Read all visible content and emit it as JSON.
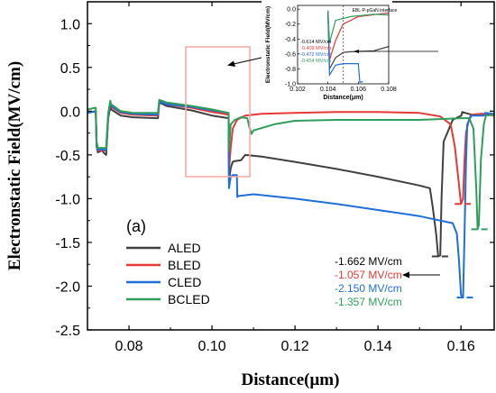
{
  "chart_data": {
    "type": "line",
    "xlabel": "Distance(μm)",
    "ylabel": "Electronstatic Field(MV/cm)",
    "xlim": [
      0.07,
      0.168
    ],
    "ylim": [
      -2.5,
      1.25
    ],
    "xticks": [
      0.08,
      0.1,
      0.12,
      0.14,
      0.16
    ],
    "xtick_labels": [
      "0.08",
      "0.10",
      "0.12",
      "0.14",
      "0.16"
    ],
    "yticks": [
      1.0,
      0.5,
      0.0,
      -0.5,
      -1.0,
      -1.5,
      -2.0,
      -2.5
    ],
    "ytick_labels": [
      "1.0",
      "0.5",
      "0.0",
      "-0.5",
      "-1.0",
      "-1.5",
      "-2.0",
      "-2.5"
    ],
    "panel_label": "(a)",
    "legend_position": "bottom-left",
    "series": [
      {
        "name": "ALED",
        "color": "#404040",
        "points": [
          [
            0.07,
            -0.02
          ],
          [
            0.072,
            0.0
          ],
          [
            0.0722,
            -0.4
          ],
          [
            0.0725,
            -0.47
          ],
          [
            0.0735,
            -0.45
          ],
          [
            0.074,
            -0.48
          ],
          [
            0.0745,
            -0.5
          ],
          [
            0.075,
            -0.08
          ],
          [
            0.0755,
            0.05
          ],
          [
            0.0757,
            0.02
          ],
          [
            0.078,
            -0.05
          ],
          [
            0.081,
            -0.07
          ],
          [
            0.0865,
            -0.08
          ],
          [
            0.087,
            -0.08
          ],
          [
            0.0873,
            0.1
          ],
          [
            0.089,
            0.06
          ],
          [
            0.095,
            0.01
          ],
          [
            0.1,
            -0.05
          ],
          [
            0.104,
            -0.08
          ],
          [
            0.1041,
            -0.8
          ],
          [
            0.1045,
            -0.65
          ],
          [
            0.105,
            -0.58
          ],
          [
            0.1055,
            -0.57
          ],
          [
            0.107,
            -0.56
          ],
          [
            0.108,
            -0.5
          ],
          [
            0.112,
            -0.52
          ],
          [
            0.12,
            -0.58
          ],
          [
            0.13,
            -0.66
          ],
          [
            0.14,
            -0.75
          ],
          [
            0.15,
            -0.85
          ],
          [
            0.1525,
            -0.88
          ],
          [
            0.1532,
            -1.1
          ],
          [
            0.154,
            -1.4
          ],
          [
            0.1545,
            -1.66
          ],
          [
            0.155,
            -1.65
          ],
          [
            0.1553,
            -1.0
          ],
          [
            0.1558,
            -0.35
          ],
          [
            0.158,
            -0.1
          ],
          [
            0.1601,
            -0.05
          ],
          [
            0.1603,
            -0.01
          ],
          [
            0.1625,
            -0.04
          ],
          [
            0.165,
            -0.03
          ],
          [
            0.168,
            -0.04
          ]
        ]
      },
      {
        "name": "BLED",
        "color": "#e53935",
        "points": [
          [
            0.07,
            -0.02
          ],
          [
            0.072,
            0.0
          ],
          [
            0.0722,
            -0.38
          ],
          [
            0.0725,
            -0.45
          ],
          [
            0.074,
            -0.45
          ],
          [
            0.0745,
            -0.45
          ],
          [
            0.075,
            -0.05
          ],
          [
            0.0755,
            0.08
          ],
          [
            0.0757,
            0.05
          ],
          [
            0.078,
            -0.02
          ],
          [
            0.081,
            -0.04
          ],
          [
            0.0865,
            -0.05
          ],
          [
            0.087,
            -0.05
          ],
          [
            0.0873,
            0.11
          ],
          [
            0.089,
            0.08
          ],
          [
            0.095,
            0.04
          ],
          [
            0.1,
            -0.01
          ],
          [
            0.104,
            -0.04
          ],
          [
            0.1041,
            -0.68
          ],
          [
            0.1045,
            -0.42
          ],
          [
            0.105,
            -0.2
          ],
          [
            0.106,
            -0.1
          ],
          [
            0.108,
            -0.05
          ],
          [
            0.112,
            -0.03
          ],
          [
            0.12,
            -0.02
          ],
          [
            0.13,
            -0.01
          ],
          [
            0.14,
            -0.01
          ],
          [
            0.15,
            -0.02
          ],
          [
            0.155,
            -0.06
          ],
          [
            0.1575,
            -0.15
          ],
          [
            0.1585,
            -0.4
          ],
          [
            0.1592,
            -0.7
          ],
          [
            0.16,
            -1.06
          ],
          [
            0.1605,
            -1.0
          ],
          [
            0.1608,
            -0.6
          ],
          [
            0.1612,
            -0.25
          ],
          [
            0.162,
            -0.08
          ],
          [
            0.1625,
            -0.04
          ],
          [
            0.165,
            -0.03
          ],
          [
            0.168,
            -0.05
          ]
        ]
      },
      {
        "name": "CLED",
        "color": "#1e6fd9",
        "points": [
          [
            0.07,
            -0.02
          ],
          [
            0.072,
            0.0
          ],
          [
            0.0722,
            -0.38
          ],
          [
            0.0725,
            -0.44
          ],
          [
            0.074,
            -0.44
          ],
          [
            0.0745,
            -0.45
          ],
          [
            0.075,
            -0.05
          ],
          [
            0.0755,
            0.09
          ],
          [
            0.0757,
            0.06
          ],
          [
            0.078,
            -0.01
          ],
          [
            0.081,
            -0.03
          ],
          [
            0.0865,
            -0.04
          ],
          [
            0.087,
            -0.04
          ],
          [
            0.0873,
            0.11
          ],
          [
            0.089,
            0.08
          ],
          [
            0.095,
            0.05
          ],
          [
            0.1,
            0.01
          ],
          [
            0.104,
            -0.02
          ],
          [
            0.1041,
            -0.88
          ],
          [
            0.1045,
            -0.75
          ],
          [
            0.105,
            -0.73
          ],
          [
            0.1055,
            -0.73
          ],
          [
            0.106,
            -0.73
          ],
          [
            0.1061,
            -0.98
          ],
          [
            0.1063,
            -0.97
          ],
          [
            0.11,
            -0.95
          ],
          [
            0.12,
            -1.0
          ],
          [
            0.13,
            -1.06
          ],
          [
            0.14,
            -1.13
          ],
          [
            0.15,
            -1.2
          ],
          [
            0.158,
            -1.28
          ],
          [
            0.159,
            -1.4
          ],
          [
            0.1595,
            -1.7
          ],
          [
            0.16,
            -2.1
          ],
          [
            0.1605,
            -2.13
          ],
          [
            0.1608,
            -1.5
          ],
          [
            0.1612,
            -0.6
          ],
          [
            0.1615,
            -0.15
          ],
          [
            0.1625,
            -0.05
          ],
          [
            0.1655,
            -0.05
          ],
          [
            0.1658,
            -0.02
          ],
          [
            0.168,
            -0.03
          ]
        ]
      },
      {
        "name": "BCLED",
        "color": "#2e9e5a",
        "points": [
          [
            0.07,
            0.02
          ],
          [
            0.072,
            0.04
          ],
          [
            0.0722,
            -0.35
          ],
          [
            0.0725,
            -0.42
          ],
          [
            0.074,
            -0.42
          ],
          [
            0.0745,
            -0.42
          ],
          [
            0.075,
            -0.02
          ],
          [
            0.0755,
            0.12
          ],
          [
            0.0757,
            0.08
          ],
          [
            0.078,
            0.0
          ],
          [
            0.081,
            -0.02
          ],
          [
            0.0865,
            -0.02
          ],
          [
            0.087,
            -0.02
          ],
          [
            0.0873,
            0.13
          ],
          [
            0.089,
            0.1
          ],
          [
            0.095,
            0.06
          ],
          [
            0.1,
            0.02
          ],
          [
            0.104,
            -0.02
          ],
          [
            0.1041,
            -0.45
          ],
          [
            0.1045,
            -0.15
          ],
          [
            0.1055,
            -0.1
          ],
          [
            0.107,
            -0.07
          ],
          [
            0.1085,
            -0.08
          ],
          [
            0.109,
            -0.18
          ],
          [
            0.1095,
            -0.26
          ],
          [
            0.11,
            -0.22
          ],
          [
            0.115,
            -0.15
          ],
          [
            0.12,
            -0.11
          ],
          [
            0.13,
            -0.1
          ],
          [
            0.14,
            -0.1
          ],
          [
            0.15,
            -0.1
          ],
          [
            0.16,
            -0.08
          ],
          [
            0.162,
            -0.08
          ],
          [
            0.163,
            -0.2
          ],
          [
            0.1637,
            -0.9
          ],
          [
            0.164,
            -1.35
          ],
          [
            0.1643,
            -1.3
          ],
          [
            0.1648,
            -0.55
          ],
          [
            0.1655,
            -0.15
          ],
          [
            0.166,
            -0.05
          ],
          [
            0.168,
            -0.04
          ]
        ]
      }
    ],
    "annotations": [
      {
        "text": "-1.662 MV/cm",
        "color": "#000000"
      },
      {
        "text": "-1.057 MV/cm",
        "color": "#e53935"
      },
      {
        "text": "-2.150 MV/cm",
        "color": "#1e6fd9"
      },
      {
        "text": "-1.357 MV/cm",
        "color": "#2e9e5a"
      }
    ],
    "inset": {
      "xlabel": "Distance(μm)",
      "ylabel": "Electronstatic Field(MV/cm)",
      "title": "EBL-P-pGaN interface",
      "xlim": [
        0.102,
        0.108
      ],
      "ylim": [
        -1.0,
        0.05
      ],
      "xticks": [
        0.102,
        0.104,
        0.106,
        0.108
      ],
      "xtick_labels": [
        "0.102",
        "0.104",
        "0.106",
        "0.108"
      ],
      "yticks": [
        0.0,
        -0.2,
        -0.4,
        -0.6,
        -0.8,
        -1.0
      ],
      "ytick_labels": [
        "0.0",
        "-0.2",
        "-0.4",
        "-0.6",
        "-0.8",
        "-1.0"
      ],
      "annotations": [
        {
          "text": "-0.614 MV/cm",
          "color": "#000000"
        },
        {
          "text": "-0.409 MV/cm",
          "color": "#e53935"
        },
        {
          "text": "-0.472 MV/cm",
          "color": "#1e6fd9"
        },
        {
          "text": "-0.454 MV/cm",
          "color": "#2e9e5a"
        }
      ]
    }
  }
}
